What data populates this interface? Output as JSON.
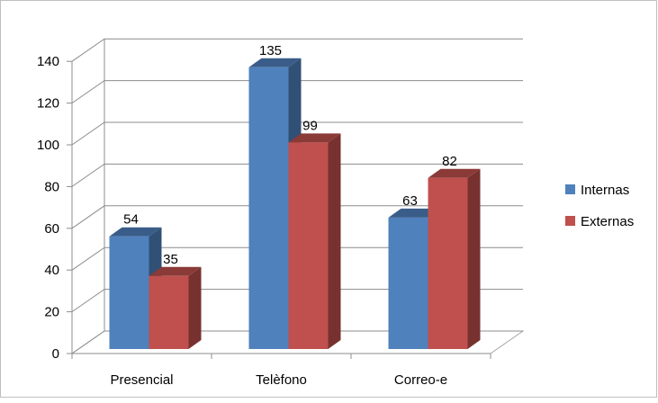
{
  "chart_data": {
    "type": "bar",
    "style": "3d-clustered-column",
    "categories": [
      "Presencial",
      "Telèfono",
      "Correo-e"
    ],
    "series": [
      {
        "name": "Internas",
        "values": [
          54,
          135,
          63
        ],
        "color": "#4f81bd"
      },
      {
        "name": "Externas",
        "values": [
          35,
          99,
          82
        ],
        "color": "#c0504d"
      }
    ],
    "ylim": [
      0,
      140
    ],
    "yticks": [
      0,
      20,
      40,
      60,
      80,
      100,
      120,
      140
    ],
    "grid": true,
    "legend": "right",
    "data_labels": true
  }
}
